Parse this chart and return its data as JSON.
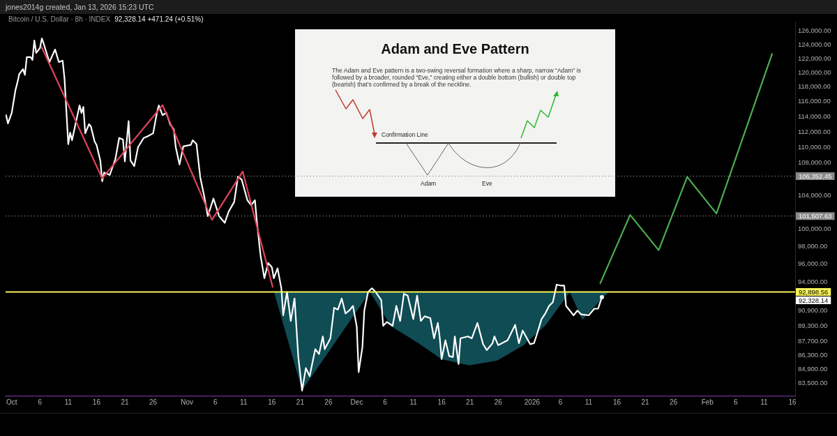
{
  "chart_data": {
    "type": "line",
    "title": "Bitcoin / U.S. Dollar · 8h · INDEX",
    "subtitle": "92,328.14 +471.24 (+0.51%)",
    "annotations": [
      "jones2014g created, Jan 13, 2026 15:23 UTC",
      "Adam and Eve Pattern",
      "The Adam and Eve pattern is a two-swing reversal formation where a sharp, narrow “Adam” is followed by a broader, rounded “Eve,” creating either a double bottom (bullish) or double top (bearish) that’s confirmed by a break of the neckline.",
      "Confirmation Line",
      "Adam",
      "Eve",
      "92,328.14"
    ],
    "log": true,
    "xlim": [
      "2025-09-29T22:00",
      "2026-02-16T12:00"
    ],
    "xticks": [
      {
        "value": "2025-10-01",
        "label": "Oct"
      },
      {
        "value": "2025-10-06",
        "label": "6"
      },
      {
        "value": "2025-10-11",
        "label": "11"
      },
      {
        "value": "2025-10-16",
        "label": "16"
      },
      {
        "value": "2025-10-21",
        "label": "21"
      },
      {
        "value": "2025-10-26",
        "label": "26"
      },
      {
        "value": "2025-11-01",
        "label": "Nov"
      },
      {
        "value": "2025-11-06",
        "label": "6"
      },
      {
        "value": "2025-11-11",
        "label": "11"
      },
      {
        "value": "2025-11-16",
        "label": "16"
      },
      {
        "value": "2025-11-21",
        "label": "21"
      },
      {
        "value": "2025-11-26",
        "label": "26"
      },
      {
        "value": "2025-12-01",
        "label": "Dec"
      },
      {
        "value": "2025-12-06",
        "label": "6"
      },
      {
        "value": "2025-12-11",
        "label": "11"
      },
      {
        "value": "2025-12-16",
        "label": "16"
      },
      {
        "value": "2025-12-21",
        "label": "21"
      },
      {
        "value": "2025-12-26",
        "label": "26"
      },
      {
        "value": "2026-01-01",
        "label": "2026"
      },
      {
        "value": "2026-01-06",
        "label": "6"
      },
      {
        "value": "2026-01-11",
        "label": "11"
      },
      {
        "value": "2026-01-16",
        "label": "16"
      },
      {
        "value": "2026-01-21",
        "label": "21"
      },
      {
        "value": "2026-01-26",
        "label": "26"
      },
      {
        "value": "2026-02-01",
        "label": "Feb"
      },
      {
        "value": "2026-02-06",
        "label": "6"
      },
      {
        "value": "2026-02-11",
        "label": "11"
      },
      {
        "value": "2026-02-16",
        "label": "16"
      }
    ],
    "ylim": [
      82250,
      127300
    ],
    "yticks": [
      {
        "value": 83500,
        "label": "83,500.00"
      },
      {
        "value": 84900,
        "label": "84,900.00"
      },
      {
        "value": 86300,
        "label": "86,300.00"
      },
      {
        "value": 87700,
        "label": "87,700.00"
      },
      {
        "value": 89300,
        "label": "89,300.00"
      },
      {
        "value": 90900,
        "label": "90,900.00"
      },
      {
        "value": 94000,
        "label": "94,000.00"
      },
      {
        "value": 96000,
        "label": "96,000.00"
      },
      {
        "value": 98000,
        "label": "98,000.00"
      },
      {
        "value": 100000,
        "label": "100,000.00"
      },
      {
        "value": 104000,
        "label": "104,000.00"
      },
      {
        "value": 108000,
        "label": "108,000.00"
      },
      {
        "value": 110000,
        "label": "110,000.00"
      },
      {
        "value": 112000,
        "label": "112,000.00"
      },
      {
        "value": 114000,
        "label": "114,000.00"
      },
      {
        "value": 116000,
        "label": "116,000.00"
      },
      {
        "value": 118000,
        "label": "118,000.00"
      },
      {
        "value": 120000,
        "label": "120,000.00"
      },
      {
        "value": 122000,
        "label": "122,000.00"
      },
      {
        "value": 124000,
        "label": "124,000.00"
      },
      {
        "value": 126000,
        "label": "126,000.00"
      }
    ],
    "ref_lines": [
      {
        "axis": "y",
        "value": 92898.56,
        "label": "92,898.56",
        "color": "#f7f35a",
        "line_style": "solid"
      },
      {
        "axis": "y",
        "value": 106352.45,
        "label": "106,352.45",
        "color": "#8a8a8a",
        "line_style": "dotted"
      },
      {
        "axis": "y",
        "value": 101507.63,
        "label": "101,507.63",
        "color": "#8a8a8a",
        "line_style": "dotted"
      }
    ],
    "series": [
      {
        "color": "#e0435a",
        "x": [
          "2025-10-06T07:00",
          "2025-10-17T00:00",
          "2025-10-27T16:00",
          "2025-11-05T10:00",
          "2025-11-10T20:00",
          "2025-11-16T03:00"
        ],
        "values": [
          123650,
          106070,
          115540,
          101060,
          106930,
          93460
        ]
      },
      {
        "color": "#4caf50",
        "x": [
          "2026-01-13T01:00",
          "2026-01-18T08:00",
          "2026-01-23T09:00",
          "2026-01-28T10:00",
          "2026-02-02T14:00",
          "2026-02-12T10:00"
        ],
        "values": [
          93840,
          101640,
          97540,
          106250,
          101800,
          122650
        ]
      },
      {
        "color": "#ffffff",
        "x": [
          "2025-09-30T00:00",
          "2025-09-30T08:00",
          "2025-10-01T00:00",
          "2025-10-01T16:00",
          "2025-10-02T00:00",
          "2025-10-02T08:00",
          "2025-10-03T00:00",
          "2025-10-03T08:00",
          "2025-10-03T16:00",
          "2025-10-04T08:00",
          "2025-10-04T16:00",
          "2025-10-05T00:00",
          "2025-10-05T08:00",
          "2025-10-06T00:00",
          "2025-10-06T08:00",
          "2025-10-06T16:00",
          "2025-10-07T16:00",
          "2025-10-08T16:00",
          "2025-10-09T08:00",
          "2025-10-10T00:00",
          "2025-10-10T08:00",
          "2025-10-11T00:00",
          "2025-10-11T08:00",
          "2025-10-11T16:00",
          "2025-10-12T08:00",
          "2025-10-13T00:00",
          "2025-10-13T08:00",
          "2025-10-13T16:00",
          "2025-10-14T00:00",
          "2025-10-14T16:00",
          "2025-10-15T00:00",
          "2025-10-15T16:00",
          "2025-10-16T00:00",
          "2025-10-16T16:00",
          "2025-10-17T00:00",
          "2025-10-17T08:00",
          "2025-10-18T08:00",
          "2025-10-19T08:00",
          "2025-10-20T00:00",
          "2025-10-20T16:00",
          "2025-10-21T00:00",
          "2025-10-21T16:00",
          "2025-10-22T00:00",
          "2025-10-22T16:00",
          "2025-10-23T08:00",
          "2025-10-24T08:00",
          "2025-10-25T00:00",
          "2025-10-26T00:00",
          "2025-10-26T16:00",
          "2025-10-27T00:00",
          "2025-10-27T16:00",
          "2025-10-28T08:00",
          "2025-10-29T00:00",
          "2025-10-29T16:00",
          "2025-10-30T00:00",
          "2025-10-30T16:00",
          "2025-10-31T08:00",
          "2025-11-01T16:00",
          "2025-11-02T00:00",
          "2025-11-02T16:00",
          "2025-11-03T08:00",
          "2025-11-04T00:00",
          "2025-11-04T16:00",
          "2025-11-05T16:00",
          "2025-11-06T16:00",
          "2025-11-07T16:00",
          "2025-11-08T08:00",
          "2025-11-09T08:00",
          "2025-11-10T00:00",
          "2025-11-10T16:00",
          "2025-11-11T16:00",
          "2025-11-12T08:00",
          "2025-11-13T00:00",
          "2025-11-13T08:00",
          "2025-11-14T00:00",
          "2025-11-14T16:00",
          "2025-11-15T08:00",
          "2025-11-16T00:00",
          "2025-11-16T08:00",
          "2025-11-17T00:00",
          "2025-11-17T16:00",
          "2025-11-18T00:00",
          "2025-11-18T16:00",
          "2025-11-19T08:00",
          "2025-11-20T00:00",
          "2025-11-20T16:00",
          "2025-11-21T08:00",
          "2025-11-22T00:00",
          "2025-11-22T16:00",
          "2025-11-23T16:00",
          "2025-11-24T08:00",
          "2025-11-25T00:00",
          "2025-11-25T08:00",
          "2025-11-26T08:00",
          "2025-11-27T00:00",
          "2025-11-27T16:00",
          "2025-11-28T08:00",
          "2025-11-29T00:00",
          "2025-11-29T16:00",
          "2025-11-30T08:00",
          "2025-12-01T00:00",
          "2025-12-01T08:00",
          "2025-12-02T00:00",
          "2025-12-02T08:00",
          "2025-12-03T00:00",
          "2025-12-03T16:00",
          "2025-12-04T08:00",
          "2025-12-05T08:00",
          "2025-12-05T16:00",
          "2025-12-06T08:00",
          "2025-12-07T08:00",
          "2025-12-08T00:00",
          "2025-12-08T16:00",
          "2025-12-09T08:00",
          "2025-12-10T00:00",
          "2025-12-11T00:00",
          "2025-12-11T16:00",
          "2025-12-12T08:00",
          "2025-12-13T00:00",
          "2025-12-14T00:00",
          "2025-12-14T16:00",
          "2025-12-15T08:00",
          "2025-12-15T16:00",
          "2025-12-16T00:00",
          "2025-12-16T16:00",
          "2025-12-17T08:00",
          "2025-12-18T00:00",
          "2025-12-18T08:00",
          "2025-12-19T00:00",
          "2025-12-19T08:00",
          "2025-12-20T16:00",
          "2025-12-21T08:00",
          "2025-12-22T08:00",
          "2025-12-23T08:00",
          "2025-12-24T00:00",
          "2025-12-25T00:00",
          "2025-12-25T08:00",
          "2025-12-26T00:00",
          "2025-12-26T16:00",
          "2025-12-27T16:00",
          "2025-12-29T00:00",
          "2025-12-29T16:00",
          "2025-12-30T08:00",
          "2025-12-31T16:00",
          "2026-01-01T08:00",
          "2026-01-02T00:00",
          "2026-01-02T16:00",
          "2026-01-03T08:00",
          "2026-01-04T00:00",
          "2026-01-04T16:00",
          "2026-01-05T08:00",
          "2026-01-06T00:00",
          "2026-01-06T16:00",
          "2026-01-07T00:00",
          "2026-01-08T08:00",
          "2026-01-09T00:00",
          "2026-01-09T16:00",
          "2026-01-11T00:00",
          "2026-01-12T00:00",
          "2026-01-12T16:00",
          "2026-01-13T08:00"
        ],
        "values": [
          114200,
          113100,
          114500,
          117600,
          118600,
          119800,
          120500,
          119700,
          122200,
          122200,
          121800,
          124600,
          122800,
          123500,
          124900,
          124100,
          121500,
          123300,
          121500,
          121700,
          119200,
          110400,
          111900,
          110900,
          113200,
          115500,
          114500,
          115300,
          111800,
          113000,
          112700,
          110700,
          110300,
          108300,
          105700,
          106800,
          106500,
          108500,
          111200,
          111000,
          108200,
          113400,
          108300,
          107600,
          110000,
          111200,
          111400,
          111800,
          114500,
          115500,
          114200,
          114500,
          113000,
          112300,
          110000,
          107800,
          110100,
          110300,
          110900,
          110400,
          106200,
          104000,
          101500,
          103600,
          101500,
          100700,
          102000,
          103200,
          106300,
          105900,
          103400,
          102800,
          103400,
          100900,
          96900,
          94400,
          96100,
          95600,
          94400,
          95500,
          93300,
          90400,
          92900,
          89800,
          92200,
          86100,
          82800,
          85000,
          84200,
          86900,
          86400,
          88200,
          86900,
          88000,
          91200,
          91000,
          92200,
          90600,
          90900,
          91400,
          89200,
          84600,
          87100,
          90900,
          92900,
          93300,
          92900,
          92000,
          89300,
          89700,
          89300,
          91400,
          89800,
          92700,
          92500,
          90000,
          92500,
          89800,
          90300,
          90100,
          88000,
          89600,
          88100,
          85900,
          87800,
          86200,
          86100,
          88200,
          85400,
          88000,
          88200,
          88000,
          89600,
          87400,
          86800,
          87500,
          88200,
          87300,
          87500,
          87800,
          89400,
          87500,
          88800,
          87400,
          87500,
          88700,
          90000,
          90600,
          91400,
          91800,
          93700,
          93600,
          93600,
          91400,
          90400,
          90900,
          90500,
          90400,
          91100,
          91100,
          92328.14
        ]
      },
      {
        "type": "area",
        "color": "#0f4c54",
        "x": [
          "2025-11-16T09:00",
          "2025-11-21T08:00",
          "2025-12-03T08:00",
          "2025-12-07T01:00",
          "2025-12-11T23:00",
          "2025-12-16T00:00",
          "2025-12-20T22:00",
          "2025-12-25T20:00",
          "2025-12-30T10:00",
          "2026-01-03T11:00",
          "2026-01-07T16:00",
          "2026-01-09T21:00",
          "2026-01-14T12:00"
        ],
        "values": [
          92898.56,
          82820,
          92898.56,
          89270,
          87480,
          85870,
          85260,
          85750,
          87270,
          89410,
          92898.56,
          89920,
          92898.56
        ]
      }
    ]
  }
}
